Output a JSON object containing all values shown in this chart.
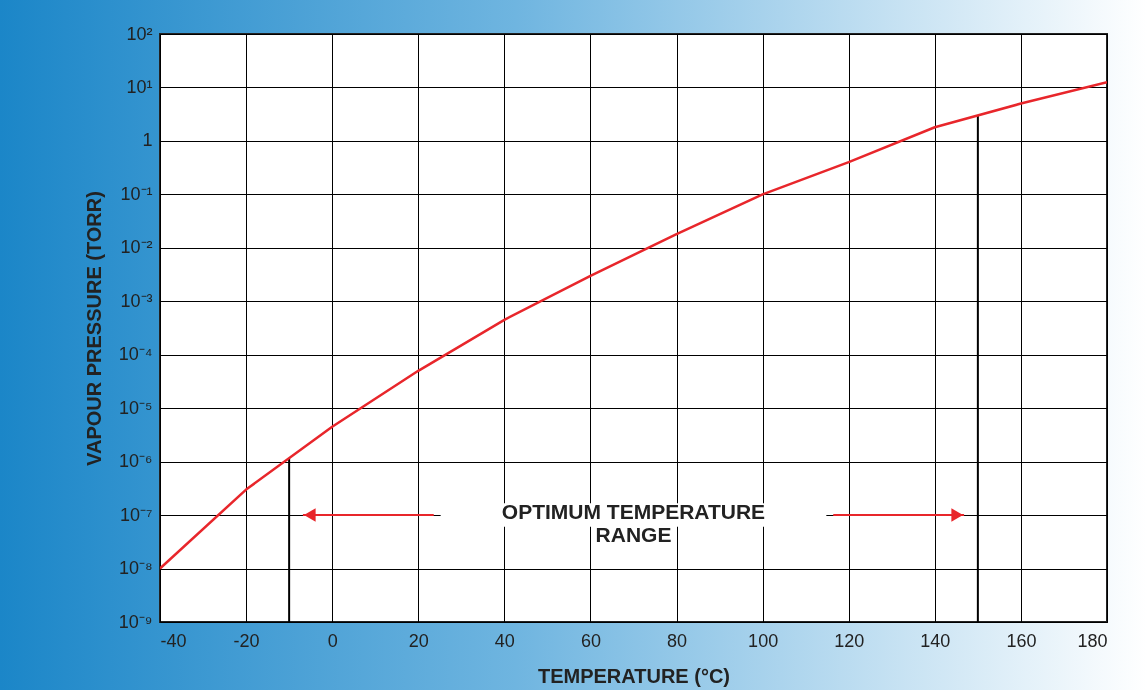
{
  "chart_data": {
    "type": "line",
    "xlabel": "TEMPERATURE (°C)",
    "ylabel": "VAPOUR PRESSURE (TORR)",
    "x": [
      -40,
      -20,
      0,
      20,
      40,
      60,
      80,
      100,
      120,
      140,
      160,
      180
    ],
    "series": [
      {
        "color": "#e8262b",
        "values": [
          1e-08,
          3e-07,
          4.5e-06,
          5e-05,
          0.00045,
          0.003,
          0.018,
          0.1,
          0.4,
          1.8,
          5,
          12.5
        ]
      }
    ],
    "log": true,
    "xlim": [
      -40,
      180
    ],
    "xticks": [
      -40,
      -20,
      0,
      20,
      40,
      60,
      80,
      100,
      120,
      140,
      160,
      180
    ],
    "ylim": [
      1e-09,
      100
    ],
    "yticks": [
      {
        "value": 1e-09,
        "label": "10⁻⁹"
      },
      {
        "value": 1e-08,
        "label": "10⁻⁸"
      },
      {
        "value": 1e-07,
        "label": "10⁻⁷"
      },
      {
        "value": 1e-06,
        "label": "10⁻⁶"
      },
      {
        "value": 1e-05,
        "label": "10⁻⁵"
      },
      {
        "value": 0.0001,
        "label": "10⁻⁴"
      },
      {
        "value": 0.001,
        "label": "10⁻³"
      },
      {
        "value": 0.01,
        "label": "10⁻²"
      },
      {
        "value": 0.1,
        "label": "10⁻¹"
      },
      {
        "value": 1,
        "label": "1"
      },
      {
        "value": 10,
        "label": "10¹"
      },
      {
        "value": 100,
        "label": "10²"
      }
    ],
    "grid": true,
    "line_style": "solid",
    "marker": "none",
    "ref_lines": [
      {
        "axis": "x",
        "value": -10,
        "color": "#000000"
      },
      {
        "axis": "x",
        "value": 150,
        "color": "#000000"
      }
    ],
    "annotations": [
      "OPTIMUM TEMPERATURE\nRANGE"
    ]
  }
}
